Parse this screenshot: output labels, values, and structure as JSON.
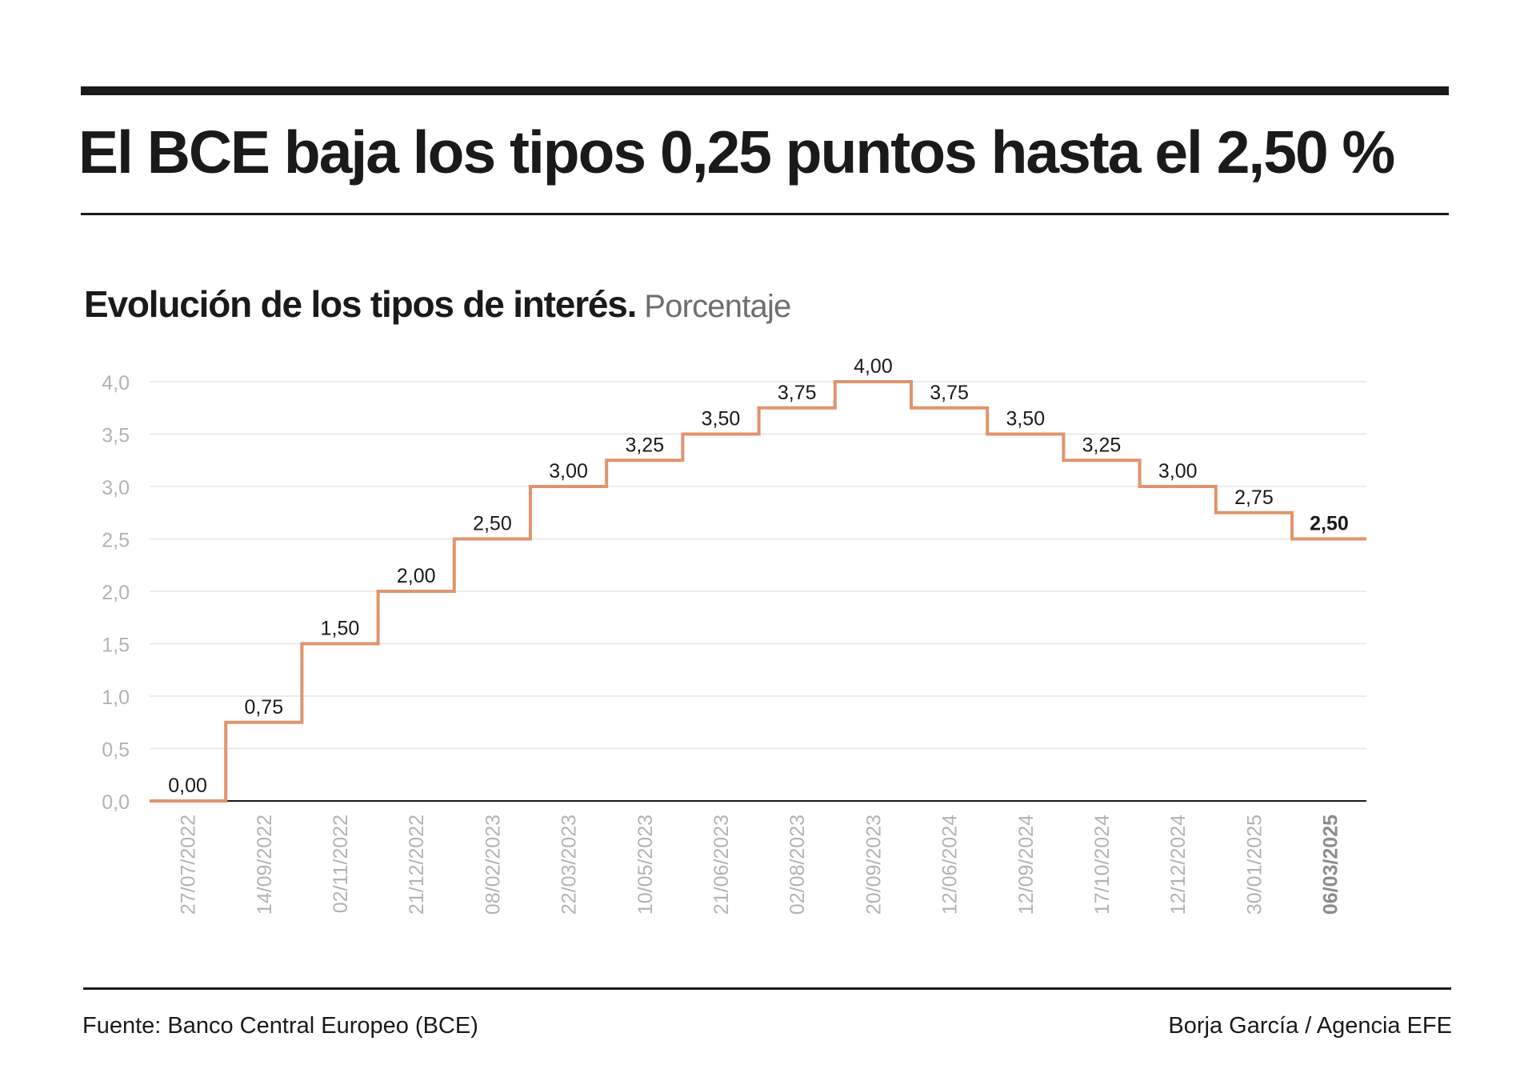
{
  "headline": "El BCE baja los tipos 0,25 puntos hasta el 2,50 %",
  "subtitle": {
    "main": "Evolución de los tipos de interés.",
    "unit": "Porcentaje"
  },
  "footer": {
    "source": "Fuente: Banco Central Europeo (BCE)",
    "credit": "Borja García / Agencia EFE"
  },
  "colors": {
    "line": "#e0946c",
    "text": "#1a1a1a",
    "axis_tick": "#b3b3b3",
    "grid": "#e6e6e6"
  },
  "chart_data": {
    "type": "line",
    "step": true,
    "title": "",
    "xlabel": "",
    "ylabel": "",
    "ylim": [
      0,
      4
    ],
    "y_ticks": [
      "0,0",
      "0,5",
      "1,0",
      "1,5",
      "2,0",
      "2,5",
      "3,0",
      "3,5",
      "4,0"
    ],
    "grid": true,
    "categories": [
      "27/07/2022",
      "14/09/2022",
      "02/11/2022",
      "21/12/2022",
      "08/02/2023",
      "22/03/2023",
      "10/05/2023",
      "21/06/2023",
      "02/08/2023",
      "20/09/2023",
      "12/06/2024",
      "12/09/2024",
      "17/10/2024",
      "12/12/2024",
      "30/01/2025",
      "06/03/2025"
    ],
    "values": [
      0.0,
      0.75,
      1.5,
      2.0,
      2.5,
      3.0,
      3.25,
      3.5,
      3.75,
      4.0,
      3.75,
      3.5,
      3.25,
      3.0,
      2.75,
      2.5
    ],
    "value_labels": [
      "0,00",
      "0,75",
      "1,50",
      "2,00",
      "2,50",
      "3,00",
      "3,25",
      "3,50",
      "3,75",
      "4,00",
      "3,75",
      "3,50",
      "3,25",
      "3,00",
      "2,75",
      "2,50"
    ],
    "highlight_index": 15
  }
}
